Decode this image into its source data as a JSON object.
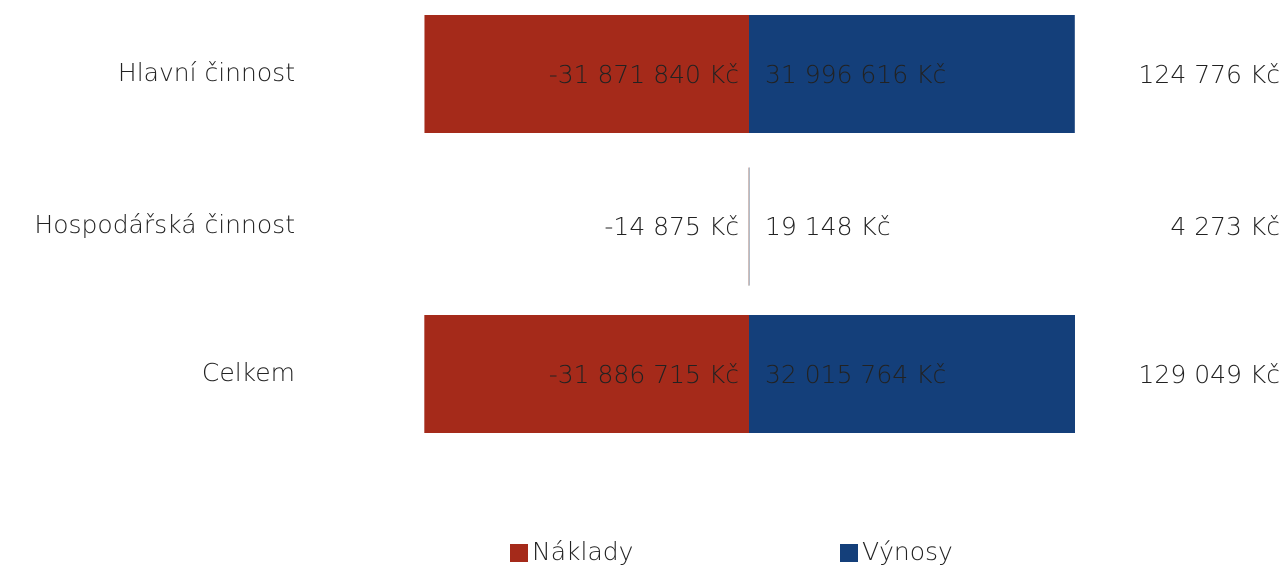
{
  "chart_data": {
    "type": "diverging-bar",
    "categories": [
      "Hlavní činnost",
      "Hospodářská činnost",
      "Celkem"
    ],
    "series": [
      {
        "name": "Náklady",
        "color": "#a52a1a",
        "values": [
          -31871840,
          -14875,
          -31886715
        ],
        "value_labels": [
          "-31 871 840 Kč",
          "-14 875 Kč",
          "-31 886 715 Kč"
        ]
      },
      {
        "name": "Výnosy",
        "color": "#143f7a",
        "values": [
          31996616,
          19148,
          32015764
        ],
        "value_labels": [
          "31 996 616 Kč",
          "19 148 Kč",
          "32 015 764 Kč"
        ]
      }
    ],
    "net": {
      "values": [
        124776,
        4273,
        129049
      ],
      "value_labels": [
        "124 776 Kč",
        "4 273 Kč",
        "129 049 Kč"
      ]
    },
    "legend": "bottom"
  }
}
